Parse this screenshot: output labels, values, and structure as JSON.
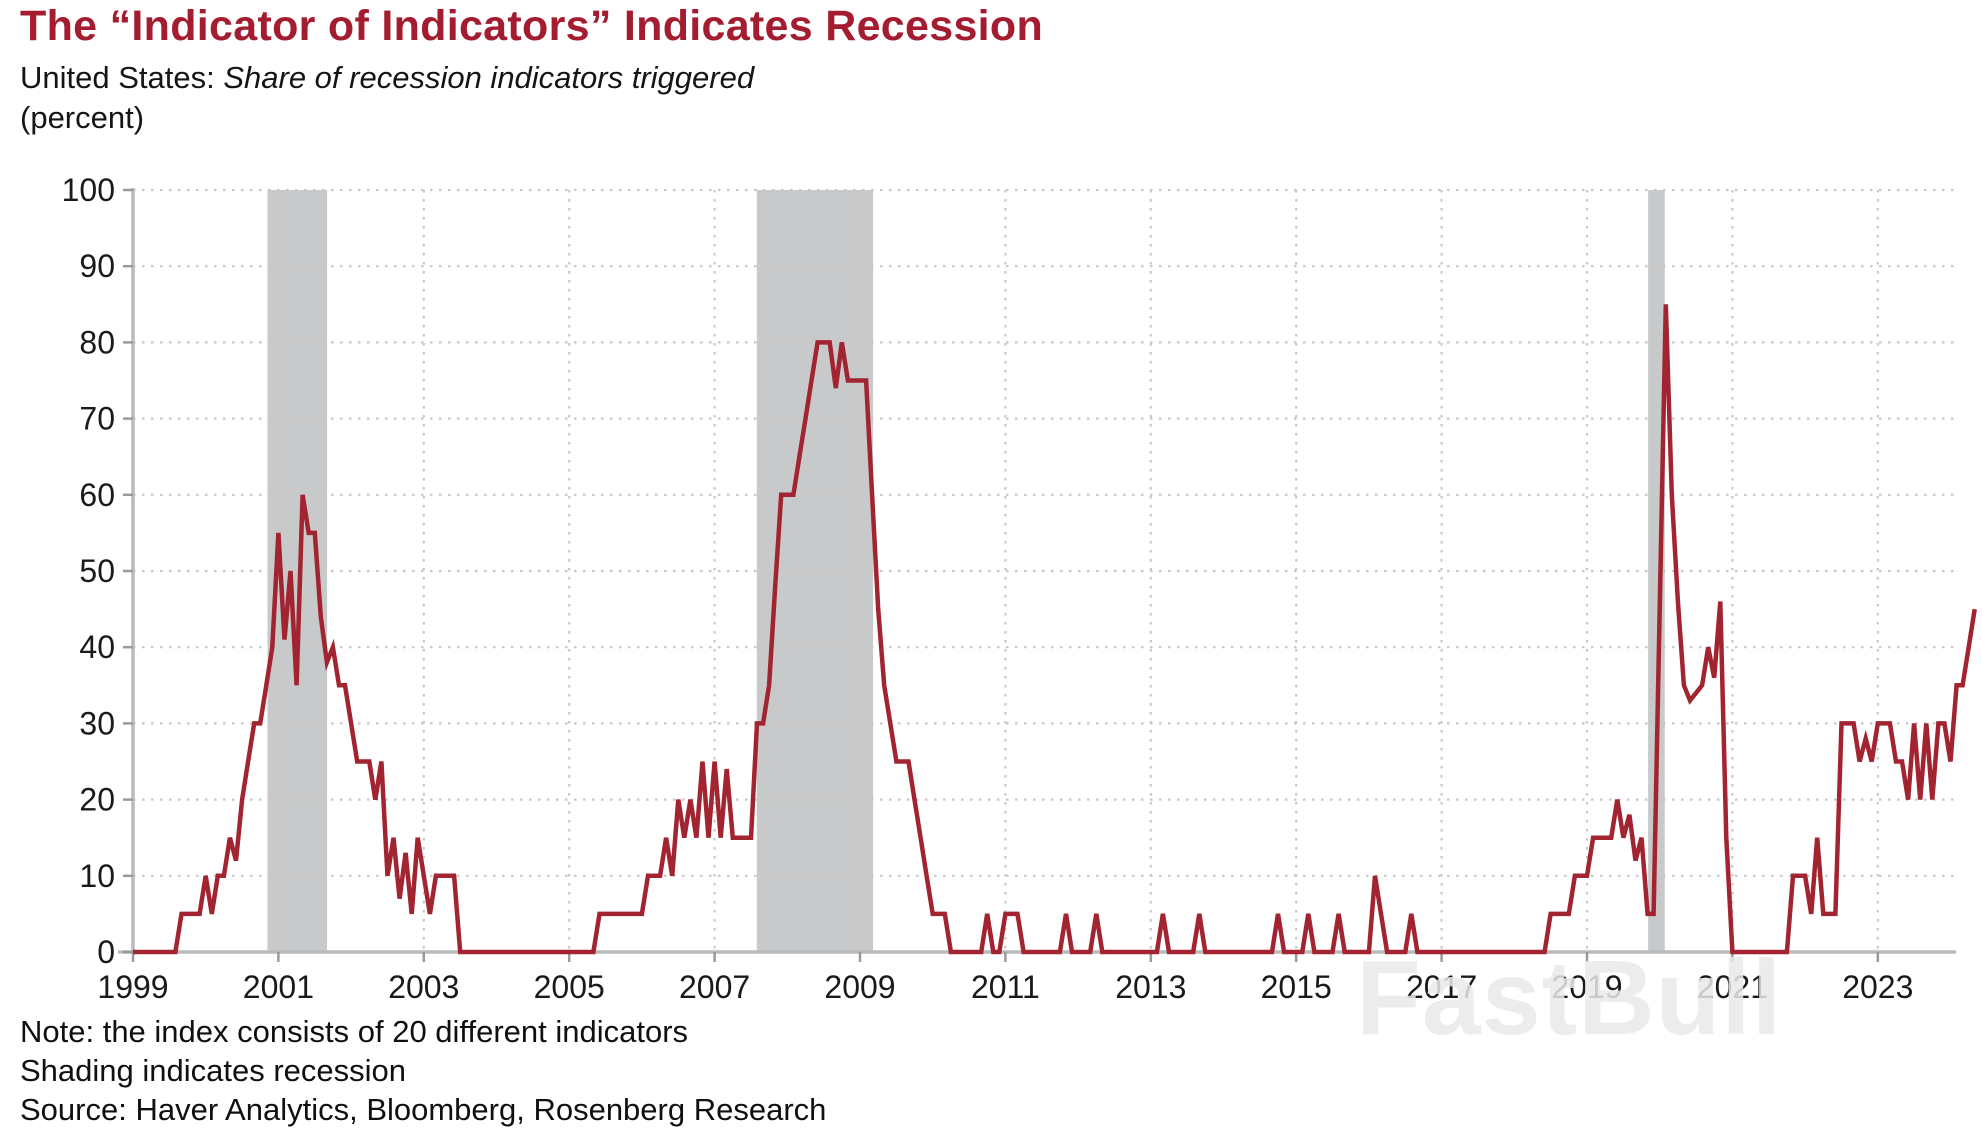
{
  "header": {
    "title": "The “Indicator of Indicators” Indicates Recession",
    "subtitle_prefix": "United States: ",
    "subtitle_italic": "Share of recession indicators triggered",
    "unit_label": "(percent)"
  },
  "watermark": {
    "text": "FastBull"
  },
  "notes": {
    "line1": "Note: the index consists of 20 different indicators",
    "line2": "Shading indicates recession",
    "line3": "Source: Haver Analytics, Bloomberg, Rosenberg Research"
  },
  "chart_data": {
    "type": "line",
    "title": "The “Indicator of Indicators” Indicates Recession",
    "subtitle": "United States: Share of recession indicators triggered",
    "ylabel": "(percent)",
    "xlabel": "",
    "grid": "dotted",
    "legend": "none",
    "ylim": [
      0,
      100
    ],
    "yticks": [
      0,
      10,
      20,
      30,
      40,
      50,
      60,
      70,
      80,
      90,
      100
    ],
    "xticks": [
      1999,
      2001,
      2003,
      2005,
      2007,
      2009,
      2011,
      2013,
      2015,
      2017,
      2019,
      2021,
      2023
    ],
    "x_start_year": 1999,
    "x_start_month": 1,
    "x_end": "2024-05",
    "frequency": "monthly",
    "line_color": "#A32431",
    "band_color": "#C7C9CB",
    "recession_bands": [
      [
        2000.85,
        2001.67
      ],
      [
        2007.58,
        2009.18
      ],
      [
        2019.84,
        2020.07
      ]
    ],
    "monthly_values": [
      0,
      0,
      0,
      0,
      0,
      0,
      0,
      0,
      5,
      5,
      5,
      5,
      10,
      5,
      10,
      10,
      15,
      12,
      20,
      25,
      30,
      30,
      35,
      40,
      55,
      41,
      50,
      35,
      60,
      55,
      55,
      44,
      38,
      40,
      35,
      35,
      30,
      25,
      25,
      25,
      20,
      25,
      10,
      15,
      7,
      13,
      5,
      15,
      10,
      5,
      10,
      10,
      10,
      10,
      0,
      0,
      0,
      0,
      0,
      0,
      0,
      0,
      0,
      0,
      0,
      0,
      0,
      0,
      0,
      0,
      0,
      0,
      0,
      0,
      0,
      0,
      0,
      5,
      5,
      5,
      5,
      5,
      5,
      5,
      5,
      10,
      10,
      10,
      15,
      10,
      20,
      15,
      20,
      15,
      25,
      15,
      25,
      15,
      24,
      15,
      15,
      15,
      15,
      30,
      30,
      35,
      48,
      60,
      60,
      60,
      65,
      70,
      75,
      80,
      80,
      80,
      74,
      80,
      75,
      75,
      75,
      75,
      60,
      45,
      35,
      30,
      25,
      25,
      25,
      20,
      15,
      10,
      5,
      5,
      5,
      0,
      0,
      0,
      0,
      0,
      0,
      5,
      0,
      0,
      5,
      5,
      5,
      0,
      0,
      0,
      0,
      0,
      0,
      0,
      5,
      0,
      0,
      0,
      0,
      5,
      0,
      0,
      0,
      0,
      0,
      0,
      0,
      0,
      0,
      0,
      5,
      0,
      0,
      0,
      0,
      0,
      5,
      0,
      0,
      0,
      0,
      0,
      0,
      0,
      0,
      0,
      0,
      0,
      0,
      5,
      0,
      0,
      0,
      0,
      5,
      0,
      0,
      0,
      0,
      5,
      0,
      0,
      0,
      0,
      0,
      10,
      5,
      0,
      0,
      0,
      0,
      5,
      0,
      0,
      0,
      0,
      0,
      0,
      0,
      0,
      0,
      0,
      0,
      0,
      0,
      0,
      0,
      0,
      0,
      0,
      0,
      0,
      0,
      0,
      5,
      5,
      5,
      5,
      10,
      10,
      10,
      15,
      15,
      15,
      15,
      20,
      15,
      18,
      12,
      15,
      5,
      5,
      45,
      85,
      60,
      46,
      35,
      33,
      34,
      35,
      40,
      36,
      46,
      15,
      0,
      0,
      0,
      0,
      0,
      0,
      0,
      0,
      0,
      0,
      10,
      10,
      10,
      5,
      15,
      5,
      5,
      5,
      30,
      30,
      30,
      25,
      28,
      25,
      30,
      30,
      30,
      25,
      25,
      20,
      30,
      20,
      30,
      20,
      30,
      30,
      25,
      35,
      35,
      40,
      45
    ]
  }
}
